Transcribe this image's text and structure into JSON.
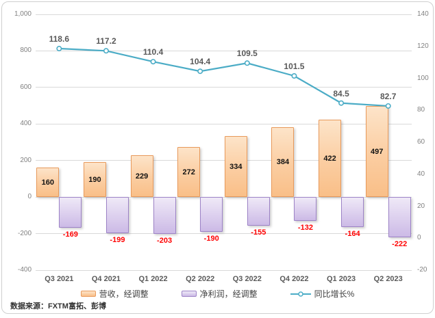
{
  "footer": {
    "source": "数据来源：FXTM富拓、彭博"
  },
  "colors": {
    "revenue_border": "#e8995a",
    "revenue_fill": "#fbcda1",
    "profit_border": "#9c82c6",
    "profit_fill": "#dccfee",
    "line": "#4bacc6",
    "grid": "#d9d9d9",
    "axis_text": "#808080",
    "negative_label": "#ff0000",
    "line_label": "#595959"
  },
  "chart_data": {
    "type": "bar",
    "subtype": "combo-bar-line",
    "categories": [
      "Q3 2021",
      "Q4 2021",
      "Q1 2022",
      "Q2 2022",
      "Q3 2022",
      "Q4 2022",
      "Q1 2023",
      "Q2 2023"
    ],
    "series": [
      {
        "name": "营收，经调整",
        "type": "bar",
        "axis": "left",
        "values": [
          160,
          190,
          229,
          272,
          334,
          384,
          422,
          497
        ]
      },
      {
        "name": "净利润，经调整",
        "type": "bar",
        "axis": "left",
        "values": [
          -169,
          -199,
          -203,
          -190,
          -155,
          -132,
          -164,
          -222
        ]
      },
      {
        "name": "同比增长%",
        "type": "line",
        "axis": "right",
        "values": [
          118.6,
          117.2,
          110.4,
          104.4,
          109.5,
          101.5,
          84.5,
          82.7
        ]
      }
    ],
    "left_axis": {
      "min": -400,
      "max": 1000,
      "step": 200,
      "ticks": [
        {
          "label": "1,000",
          "value": 1000
        },
        {
          "label": "800",
          "value": 800
        },
        {
          "label": "600",
          "value": 600
        },
        {
          "label": "400",
          "value": 400
        },
        {
          "label": "200",
          "value": 200
        },
        {
          "label": "0",
          "value": 0
        },
        {
          "label": "-200",
          "value": -200
        },
        {
          "label": "-400",
          "value": -400
        }
      ]
    },
    "right_axis": {
      "min": -20,
      "max": 140,
      "step": 20,
      "ticks": [
        {
          "label": "140",
          "value": 140
        },
        {
          "label": "120",
          "value": 120
        },
        {
          "label": "100",
          "value": 100
        },
        {
          "label": "80",
          "value": 80
        },
        {
          "label": "60",
          "value": 60
        },
        {
          "label": "40",
          "value": 40
        },
        {
          "label": "20",
          "value": 20
        },
        {
          "label": "0",
          "value": 0
        },
        {
          "label": "-20",
          "value": -20
        }
      ]
    },
    "grid": true,
    "legend_position": "bottom",
    "title": ""
  }
}
